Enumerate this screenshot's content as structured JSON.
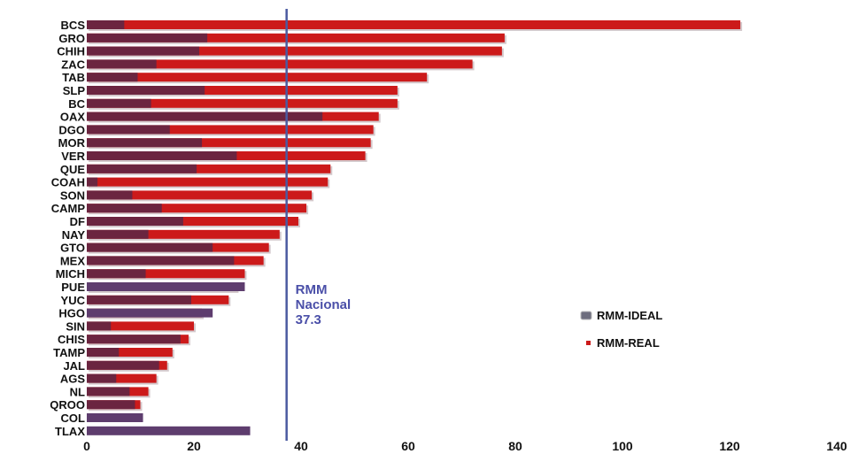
{
  "chart_data": {
    "type": "bar",
    "orientation": "horizontal",
    "stacked": "overlay",
    "title": "",
    "xlabel": "",
    "ylabel": "",
    "xlim": [
      0,
      140
    ],
    "xticks": [
      0,
      20,
      40,
      60,
      80,
      100,
      120,
      140
    ],
    "grid": false,
    "legend_position": "right",
    "categories": [
      "BCS",
      "GRO",
      "CHIH",
      "ZAC",
      "TAB",
      "SLP",
      "BC",
      "OAX",
      "DGO",
      "MOR",
      "VER",
      "QUE",
      "COAH",
      "SON",
      "CAMP",
      "DF",
      "NAY",
      "GTO",
      "MEX",
      "MICH",
      "PUE",
      "YUC",
      "HGO",
      "SIN",
      "CHIS",
      "TAMP",
      "JAL",
      "AGS",
      "NL",
      "QROO",
      "COL",
      "TLAX"
    ],
    "series": [
      {
        "name": "RMM-IDEAL",
        "color": "#6b2540",
        "values": [
          7,
          22.5,
          21,
          13,
          9.5,
          22,
          12,
          44,
          15.5,
          21.5,
          28,
          20.5,
          2,
          8.5,
          14,
          18,
          11.5,
          23.5,
          27.5,
          11,
          29.5,
          19.5,
          23.5,
          4.5,
          17.5,
          6,
          13.5,
          5.5,
          8,
          9,
          10.5,
          30.5
        ],
        "colors_note": "overlay base"
      },
      {
        "name": "RMM-REAL",
        "color": "#cc1a1a",
        "values": [
          122,
          78,
          77.5,
          72,
          63.5,
          58,
          58,
          54.5,
          53.5,
          53,
          52,
          45.5,
          45,
          42,
          41,
          39.5,
          36,
          34,
          33,
          29.5,
          28,
          26.5,
          21.5,
          20,
          19,
          16,
          15,
          13,
          11.5,
          10,
          0,
          0
        ]
      }
    ],
    "reference_line": {
      "value": 37.3,
      "label_lines": [
        "RMM",
        "Nacional",
        "37.3"
      ],
      "color": "#4a5aa0"
    }
  }
}
